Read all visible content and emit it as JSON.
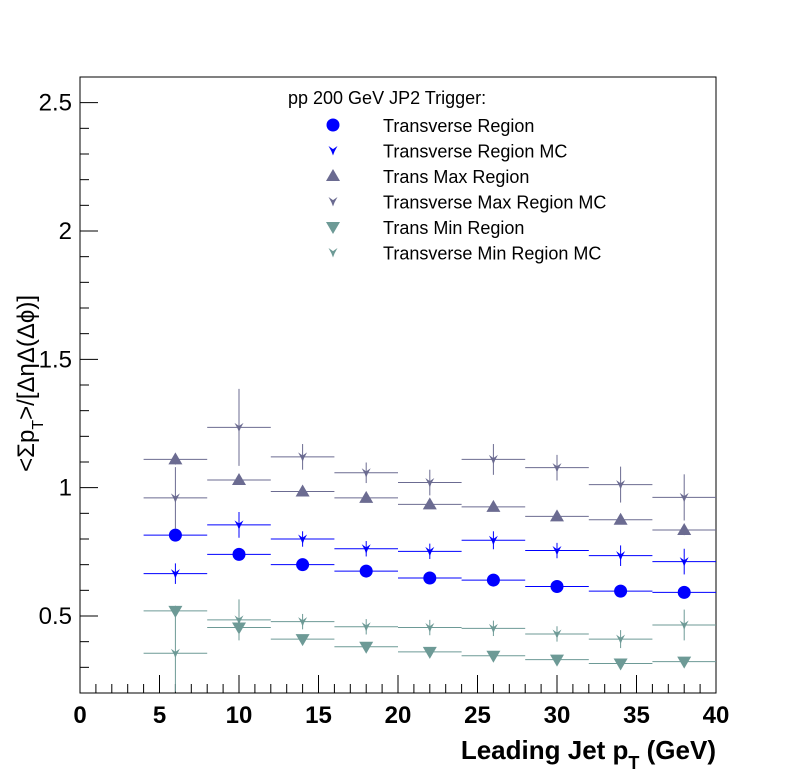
{
  "chart_data": {
    "type": "scatter",
    "title": "",
    "xlabel": "Leading Jet p_T (GeV)",
    "ylabel": "<Σp_T>/[ΔηΔ(Δϕ)]",
    "xlim": [
      0,
      40
    ],
    "ylim": [
      0.2,
      2.6
    ],
    "x_ticks": [
      "0",
      "5",
      "10",
      "15",
      "20",
      "25",
      "30",
      "35",
      "40"
    ],
    "y_ticks": [
      "0.5",
      "1",
      "1.5",
      "2",
      "2.5"
    ],
    "legend_title": "pp 200 GeV JP2 Trigger:",
    "legend_position": "top-center",
    "grid": false,
    "series": [
      {
        "name": "Transverse Region",
        "marker": "circle",
        "color": "#0000ff",
        "points": [
          {
            "x": 6,
            "y": 0.815,
            "xerr": 2,
            "yerr": 0.02
          },
          {
            "x": 10,
            "y": 0.74,
            "xerr": 2,
            "yerr": 0.015
          },
          {
            "x": 14,
            "y": 0.7,
            "xerr": 2,
            "yerr": 0.012
          },
          {
            "x": 18,
            "y": 0.675,
            "xerr": 2,
            "yerr": 0.01
          },
          {
            "x": 22,
            "y": 0.648,
            "xerr": 2,
            "yerr": 0.01
          },
          {
            "x": 26,
            "y": 0.64,
            "xerr": 2,
            "yerr": 0.01
          },
          {
            "x": 30,
            "y": 0.615,
            "xerr": 2,
            "yerr": 0.01
          },
          {
            "x": 34,
            "y": 0.597,
            "xerr": 2,
            "yerr": 0.01
          },
          {
            "x": 38,
            "y": 0.592,
            "xerr": 2,
            "yerr": 0.01
          }
        ]
      },
      {
        "name": "Transverse Region MC",
        "marker": "star",
        "color": "#0000ff",
        "points": [
          {
            "x": 6,
            "y": 0.665,
            "xerr": 2,
            "yerr": 0.04
          },
          {
            "x": 10,
            "y": 0.855,
            "xerr": 2,
            "yerr": 0.05
          },
          {
            "x": 14,
            "y": 0.8,
            "xerr": 2,
            "yerr": 0.03
          },
          {
            "x": 18,
            "y": 0.762,
            "xerr": 2,
            "yerr": 0.03
          },
          {
            "x": 22,
            "y": 0.752,
            "xerr": 2,
            "yerr": 0.03
          },
          {
            "x": 26,
            "y": 0.795,
            "xerr": 2,
            "yerr": 0.035
          },
          {
            "x": 30,
            "y": 0.755,
            "xerr": 2,
            "yerr": 0.03
          },
          {
            "x": 34,
            "y": 0.735,
            "xerr": 2,
            "yerr": 0.04
          },
          {
            "x": 38,
            "y": 0.712,
            "xerr": 2,
            "yerr": 0.05
          }
        ]
      },
      {
        "name": "Trans Max Region",
        "marker": "triangle-up",
        "color": "#6b6b91",
        "points": [
          {
            "x": 6,
            "y": 1.11,
            "xerr": 2,
            "yerr": 0.02
          },
          {
            "x": 10,
            "y": 1.03,
            "xerr": 2,
            "yerr": 0.015
          },
          {
            "x": 14,
            "y": 0.985,
            "xerr": 2,
            "yerr": 0.01
          },
          {
            "x": 18,
            "y": 0.96,
            "xerr": 2,
            "yerr": 0.01
          },
          {
            "x": 22,
            "y": 0.935,
            "xerr": 2,
            "yerr": 0.01
          },
          {
            "x": 26,
            "y": 0.925,
            "xerr": 2,
            "yerr": 0.01
          },
          {
            "x": 30,
            "y": 0.888,
            "xerr": 2,
            "yerr": 0.01
          },
          {
            "x": 34,
            "y": 0.875,
            "xerr": 2,
            "yerr": 0.01
          },
          {
            "x": 38,
            "y": 0.835,
            "xerr": 2,
            "yerr": 0.02
          }
        ]
      },
      {
        "name": "Transverse Max Region MC",
        "marker": "star",
        "color": "#6b6b91",
        "points": [
          {
            "x": 6,
            "y": 0.96,
            "xerr": 2,
            "yerr": 0.12
          },
          {
            "x": 10,
            "y": 1.235,
            "xerr": 2,
            "yerr": 0.15
          },
          {
            "x": 14,
            "y": 1.12,
            "xerr": 2,
            "yerr": 0.05
          },
          {
            "x": 18,
            "y": 1.058,
            "xerr": 2,
            "yerr": 0.04
          },
          {
            "x": 22,
            "y": 1.02,
            "xerr": 2,
            "yerr": 0.05
          },
          {
            "x": 26,
            "y": 1.11,
            "xerr": 2,
            "yerr": 0.06
          },
          {
            "x": 30,
            "y": 1.078,
            "xerr": 2,
            "yerr": 0.05
          },
          {
            "x": 34,
            "y": 1.012,
            "xerr": 2,
            "yerr": 0.07
          },
          {
            "x": 38,
            "y": 0.962,
            "xerr": 2,
            "yerr": 0.09
          }
        ]
      },
      {
        "name": "Trans Min Region",
        "marker": "triangle-down",
        "color": "#6d9a96",
        "points": [
          {
            "x": 6,
            "y": 0.52,
            "xerr": 2,
            "yerr": 0.02
          },
          {
            "x": 10,
            "y": 0.455,
            "xerr": 2,
            "yerr": 0.015
          },
          {
            "x": 14,
            "y": 0.41,
            "xerr": 2,
            "yerr": 0.01
          },
          {
            "x": 18,
            "y": 0.38,
            "xerr": 2,
            "yerr": 0.01
          },
          {
            "x": 22,
            "y": 0.36,
            "xerr": 2,
            "yerr": 0.01
          },
          {
            "x": 26,
            "y": 0.345,
            "xerr": 2,
            "yerr": 0.01
          },
          {
            "x": 30,
            "y": 0.33,
            "xerr": 2,
            "yerr": 0.01
          },
          {
            "x": 34,
            "y": 0.315,
            "xerr": 2,
            "yerr": 0.01
          },
          {
            "x": 38,
            "y": 0.322,
            "xerr": 2,
            "yerr": 0.01
          }
        ]
      },
      {
        "name": "Transverse Min Region MC",
        "marker": "star",
        "color": "#6d9a96",
        "points": [
          {
            "x": 6,
            "y": 0.355,
            "xerr": 2,
            "yerr": 0.15
          },
          {
            "x": 10,
            "y": 0.485,
            "xerr": 2,
            "yerr": 0.08
          },
          {
            "x": 14,
            "y": 0.478,
            "xerr": 2,
            "yerr": 0.03
          },
          {
            "x": 18,
            "y": 0.458,
            "xerr": 2,
            "yerr": 0.03
          },
          {
            "x": 22,
            "y": 0.455,
            "xerr": 2,
            "yerr": 0.03
          },
          {
            "x": 26,
            "y": 0.452,
            "xerr": 2,
            "yerr": 0.03
          },
          {
            "x": 30,
            "y": 0.43,
            "xerr": 2,
            "yerr": 0.03
          },
          {
            "x": 34,
            "y": 0.41,
            "xerr": 2,
            "yerr": 0.035
          },
          {
            "x": 38,
            "y": 0.465,
            "xerr": 2,
            "yerr": 0.06
          }
        ]
      }
    ]
  }
}
